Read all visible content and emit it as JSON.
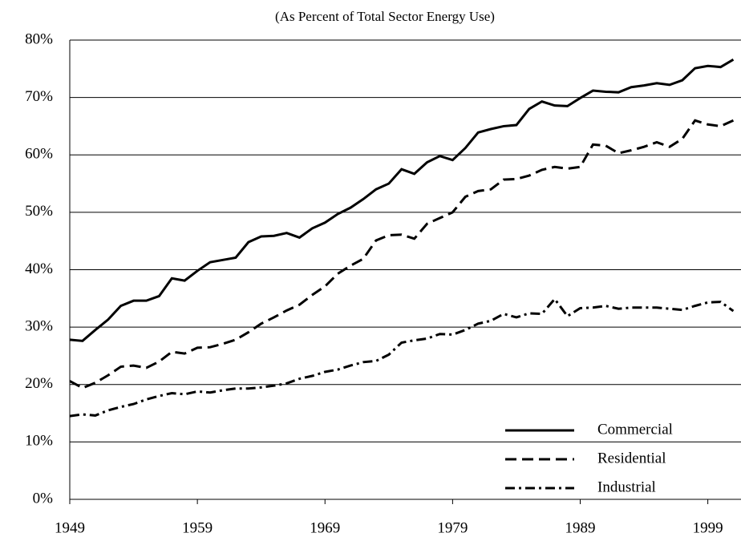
{
  "chart_data": {
    "type": "line",
    "subtitle": "(As Percent of Total Sector Energy Use)",
    "x": [
      1949,
      1950,
      1951,
      1952,
      1953,
      1954,
      1955,
      1956,
      1957,
      1958,
      1959,
      1960,
      1961,
      1962,
      1963,
      1964,
      1965,
      1966,
      1967,
      1968,
      1969,
      1970,
      1971,
      1972,
      1973,
      1974,
      1975,
      1976,
      1977,
      1978,
      1979,
      1980,
      1981,
      1982,
      1983,
      1984,
      1985,
      1986,
      1987,
      1988,
      1989,
      1990,
      1991,
      1992,
      1993,
      1994,
      1995,
      1996,
      1997,
      1998,
      1999,
      2000,
      2001
    ],
    "series": [
      {
        "name": "Commercial",
        "color": "#000000",
        "dash": "solid",
        "values": [
          27.8,
          27.6,
          29.5,
          31.3,
          33.7,
          34.6,
          34.6,
          35.4,
          38.5,
          38.1,
          39.8,
          41.3,
          41.7,
          42.1,
          44.8,
          45.8,
          45.9,
          46.4,
          45.6,
          47.2,
          48.2,
          49.7,
          50.8,
          52.3,
          54.0,
          55.0,
          57.5,
          56.7,
          58.7,
          59.8,
          59.1,
          61.2,
          63.9,
          64.5,
          65.0,
          65.2,
          68.0,
          69.3,
          68.6,
          68.5,
          69.9,
          71.2,
          71.0,
          70.9,
          71.8,
          72.1,
          72.5,
          72.2,
          73.0,
          75.1,
          75.5,
          75.3,
          76.6
        ]
      },
      {
        "name": "Residential",
        "color": "#000000",
        "dash": "dash",
        "values": [
          20.6,
          19.4,
          20.3,
          21.6,
          23.1,
          23.3,
          22.9,
          24.0,
          25.7,
          25.4,
          26.4,
          26.5,
          27.1,
          27.8,
          29.1,
          30.6,
          31.7,
          32.9,
          33.9,
          35.6,
          37.1,
          39.3,
          40.7,
          41.9,
          45.1,
          46.0,
          46.1,
          45.4,
          48.0,
          49.0,
          50.0,
          52.7,
          53.7,
          54.0,
          55.7,
          55.8,
          56.4,
          57.4,
          57.9,
          57.6,
          57.9,
          61.8,
          61.6,
          60.3,
          60.8,
          61.4,
          62.2,
          61.4,
          62.8,
          66.0,
          65.3,
          65.0,
          66.0
        ]
      },
      {
        "name": "Industrial",
        "color": "#000000",
        "dash": "dashdot",
        "values": [
          14.5,
          14.8,
          14.6,
          15.5,
          16.1,
          16.6,
          17.4,
          18.0,
          18.5,
          18.3,
          18.8,
          18.6,
          19.0,
          19.3,
          19.3,
          19.5,
          19.8,
          20.2,
          21.0,
          21.5,
          22.2,
          22.6,
          23.3,
          23.9,
          24.1,
          25.2,
          27.3,
          27.7,
          28.0,
          28.8,
          28.7,
          29.5,
          30.6,
          31.1,
          32.3,
          31.7,
          32.4,
          32.3,
          34.9,
          31.9,
          33.3,
          33.4,
          33.7,
          33.2,
          33.4,
          33.4,
          33.4,
          33.2,
          33.0,
          33.7,
          34.3,
          34.4,
          32.8
        ]
      }
    ],
    "xlim": [
      1949,
      2001.6
    ],
    "xticks": [
      1949,
      1959,
      1969,
      1979,
      1989,
      1999
    ],
    "ylim": [
      0,
      80
    ],
    "yticks": [
      {
        "value": 0,
        "label": "0%"
      },
      {
        "value": 10,
        "label": "10%"
      },
      {
        "value": 20,
        "label": "20%"
      },
      {
        "value": 30,
        "label": "30%"
      },
      {
        "value": 40,
        "label": "40%"
      },
      {
        "value": 50,
        "label": "50%"
      },
      {
        "value": 60,
        "label": "60%"
      },
      {
        "value": 70,
        "label": "70%"
      },
      {
        "value": 80,
        "label": "80%"
      }
    ],
    "grid": true,
    "legend": "bottom-right"
  }
}
